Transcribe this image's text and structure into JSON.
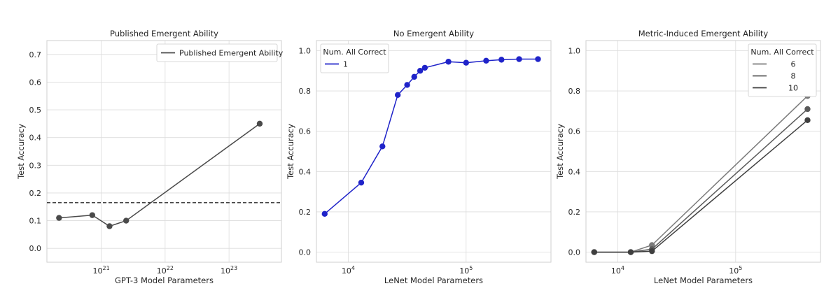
{
  "chart_data": [
    {
      "type": "line",
      "title": "Published Emergent Ability",
      "xlabel": "GPT-3 Model Parameters",
      "ylabel": "Test Accuracy",
      "xscale": "log",
      "xlim_log10": [
        20.15,
        23.82
      ],
      "ylim": [
        -0.05,
        0.75
      ],
      "yticks": [
        0.0,
        0.1,
        0.2,
        0.3,
        0.4,
        0.5,
        0.6,
        0.7
      ],
      "ytick_labels": [
        "0.0",
        "0.1",
        "0.2",
        "0.3",
        "0.4",
        "0.5",
        "0.6",
        "0.7"
      ],
      "xticks_log10": [
        21,
        22,
        23
      ],
      "xtick_labels": [
        "10",
        "10",
        "10"
      ],
      "xtick_exponents": [
        "21",
        "22",
        "23"
      ],
      "grid": true,
      "legend_title": "",
      "legend_position": "upper right",
      "hline": {
        "y": 0.165,
        "style": "dashed",
        "color": "#2b2b2b"
      },
      "series": [
        {
          "name": "Published Emergent Ability",
          "color": "#4a4a4a",
          "x_log10": [
            20.34,
            20.86,
            21.13,
            21.39,
            23.48
          ],
          "y": [
            0.11,
            0.12,
            0.08,
            0.1,
            0.45
          ]
        }
      ]
    },
    {
      "type": "line",
      "title": "No Emergent Ability",
      "xlabel": "LeNet Model Parameters",
      "ylabel": "Test Accuracy",
      "xscale": "log",
      "xlim_log10": [
        3.73,
        5.72
      ],
      "ylim": [
        -0.05,
        1.05
      ],
      "yticks": [
        0.0,
        0.2,
        0.4,
        0.6,
        0.8,
        1.0
      ],
      "ytick_labels": [
        "0.0",
        "0.2",
        "0.4",
        "0.6",
        "0.8",
        "1.0"
      ],
      "xticks_log10": [
        4,
        5
      ],
      "xtick_labels": [
        "10",
        "10"
      ],
      "xtick_exponents": [
        "4",
        "5"
      ],
      "grid": true,
      "legend_title": "Num. All Correct",
      "legend_position": "upper left",
      "series": [
        {
          "name": "1",
          "color": "#1f23c9",
          "x_log10": [
            3.8,
            4.11,
            4.29,
            4.42,
            4.5,
            4.56,
            4.61,
            4.65,
            4.85,
            5.0,
            5.17,
            5.3,
            5.45,
            5.61
          ],
          "y": [
            0.19,
            0.345,
            0.525,
            0.78,
            0.83,
            0.87,
            0.9,
            0.915,
            0.945,
            0.94,
            0.95,
            0.955,
            0.958,
            0.958
          ]
        }
      ]
    },
    {
      "type": "line",
      "title": "Metric-Induced Emergent Ability",
      "xlabel": "LeNet Model Parameters",
      "ylabel": "Test Accuracy",
      "xscale": "log",
      "xlim_log10": [
        3.73,
        5.72
      ],
      "ylim": [
        -0.05,
        1.05
      ],
      "yticks": [
        0.0,
        0.2,
        0.4,
        0.6,
        0.8,
        1.0
      ],
      "ytick_labels": [
        "0.0",
        "0.2",
        "0.4",
        "0.6",
        "0.8",
        "1.0"
      ],
      "xticks_log10": [
        4,
        5
      ],
      "xtick_labels": [
        "10",
        "10"
      ],
      "xtick_exponents": [
        "4",
        "5"
      ],
      "grid": true,
      "legend_title": "Num. All Correct",
      "legend_position": "upper right",
      "series": [
        {
          "name": "6",
          "color": "#7a7a7a",
          "x_log10": [
            3.8,
            4.11,
            4.29,
            5.61
          ],
          "y": [
            0.0,
            0.0,
            0.035,
            0.775
          ]
        },
        {
          "name": "8",
          "color": "#5a5a5a",
          "x_log10": [
            3.8,
            4.11,
            4.29,
            5.61
          ],
          "y": [
            0.0,
            0.0,
            0.015,
            0.71
          ]
        },
        {
          "name": "10",
          "color": "#3f3f3f",
          "x_log10": [
            3.8,
            4.11,
            4.29,
            5.61
          ],
          "y": [
            0.0,
            0.0,
            0.005,
            0.655
          ]
        }
      ]
    }
  ]
}
